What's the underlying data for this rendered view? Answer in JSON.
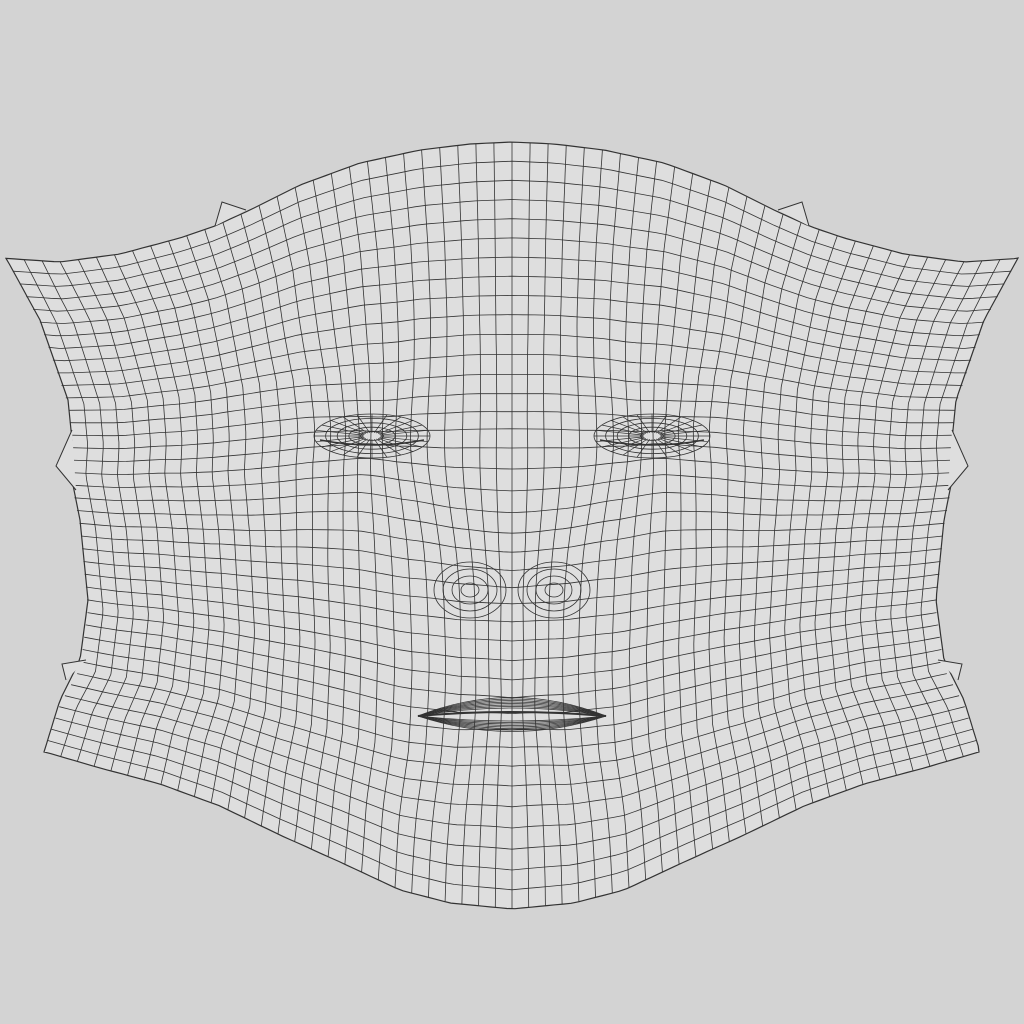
{
  "canvas": {
    "background_color": "#d3d3d3",
    "mesh_fill_color": "#dedede",
    "wire_color": "#333333"
  },
  "mesh": {
    "subject": "face-uv-layout",
    "topology": "quad-wireframe",
    "regions": [
      "forehead",
      "left-eye",
      "right-eye",
      "nose",
      "mouth",
      "cheeks",
      "chin"
    ]
  }
}
